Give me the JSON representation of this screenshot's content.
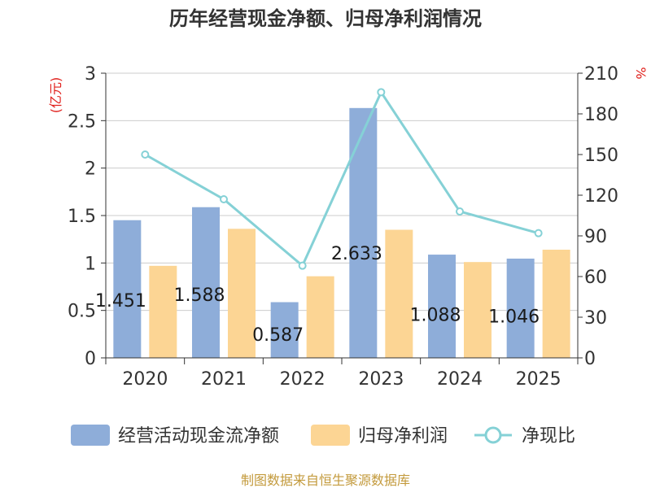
{
  "title": "历年经营现金净额、归母净利润情况",
  "source": "制图数据来自恒生聚源数据库",
  "colors": {
    "cash_flow": "#8eadd9",
    "net_profit": "#fcd594",
    "ratio": "#85d1d6",
    "grid": "#cccccc",
    "unit_text": "#e0201c"
  },
  "chart_data": {
    "type": "bar",
    "title": "历年经营现金净额、归母净利润情况",
    "categories": [
      "2020",
      "2021",
      "2022",
      "2023",
      "2024",
      "2025"
    ],
    "y_left": {
      "label": "(亿元)",
      "min": 0,
      "max": 3,
      "ticks": [
        "0",
        "0.5",
        "1",
        "1.5",
        "2",
        "2.5",
        "3"
      ]
    },
    "y_right": {
      "label": "%",
      "min": 0,
      "max": 210,
      "ticks": [
        "0",
        "30",
        "60",
        "90",
        "120",
        "150",
        "180",
        "210"
      ]
    },
    "series": [
      {
        "name": "经营活动现金流净额",
        "type": "bar",
        "axis": "left",
        "values": [
          1.451,
          1.588,
          0.587,
          2.633,
          1.088,
          1.046
        ],
        "labels": [
          "1.451",
          "1.588",
          "0.587",
          "2.633",
          "1.088",
          "1.046"
        ]
      },
      {
        "name": "归母净利润",
        "type": "bar",
        "axis": "left",
        "values": [
          0.97,
          1.36,
          0.86,
          1.35,
          1.01,
          1.14
        ]
      },
      {
        "name": "净现比",
        "type": "line",
        "axis": "right",
        "values": [
          150,
          117,
          68,
          196,
          108,
          92
        ]
      }
    ],
    "legend": "bottom"
  }
}
